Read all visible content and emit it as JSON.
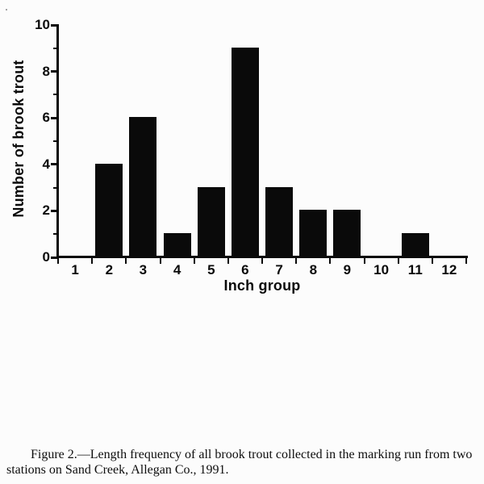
{
  "chart_data": {
    "type": "bar",
    "title": "",
    "categories": [
      "1",
      "2",
      "3",
      "4",
      "5",
      "6",
      "7",
      "8",
      "9",
      "10",
      "11",
      "12"
    ],
    "values": [
      0,
      4,
      6,
      1,
      3,
      9,
      3,
      2,
      2,
      0,
      1,
      0
    ],
    "xlabel": "Inch group",
    "ylabel": "Number of brook trout",
    "ylim": [
      0,
      10
    ],
    "y_major_ticks": [
      0,
      2,
      4,
      6,
      8,
      10
    ],
    "y_minor_ticks": [
      1,
      3,
      5,
      7,
      9
    ],
    "bar_color": "#0a0a0a",
    "axis_color": "#0a0a0a",
    "grid": false,
    "legend_position": "none"
  },
  "caption": {
    "lines": [
      "Figure 2.—Length frequency of all brook trout collected in the marking run from two",
      "stations on Sand Creek, Allegan Co., 1991."
    ]
  }
}
